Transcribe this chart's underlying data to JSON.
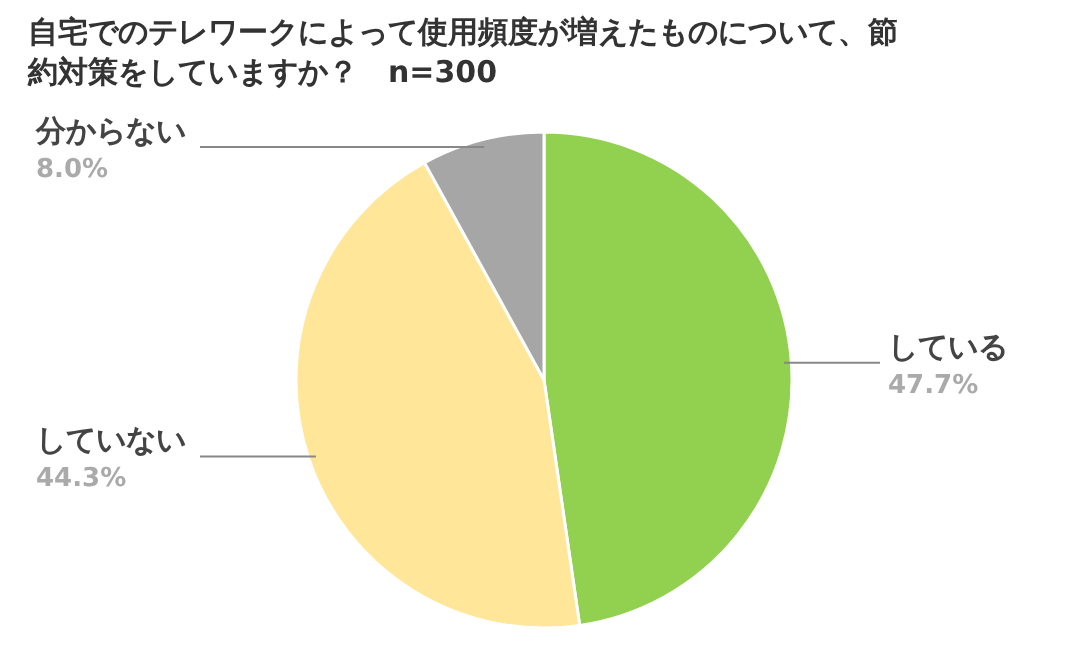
{
  "chart_data": {
    "type": "pie",
    "title": "自宅でのテレワークによって使用頻度が増えたものについて、節約対策をしていますか？　n=300",
    "categories": [
      "している",
      "していない",
      "分からない"
    ],
    "values": [
      47.7,
      44.3,
      8.0
    ],
    "value_labels": [
      "47.7%",
      "44.3%",
      "8.0%"
    ],
    "colors": [
      "#92d050",
      "#ffe699",
      "#a6a6a6"
    ]
  }
}
